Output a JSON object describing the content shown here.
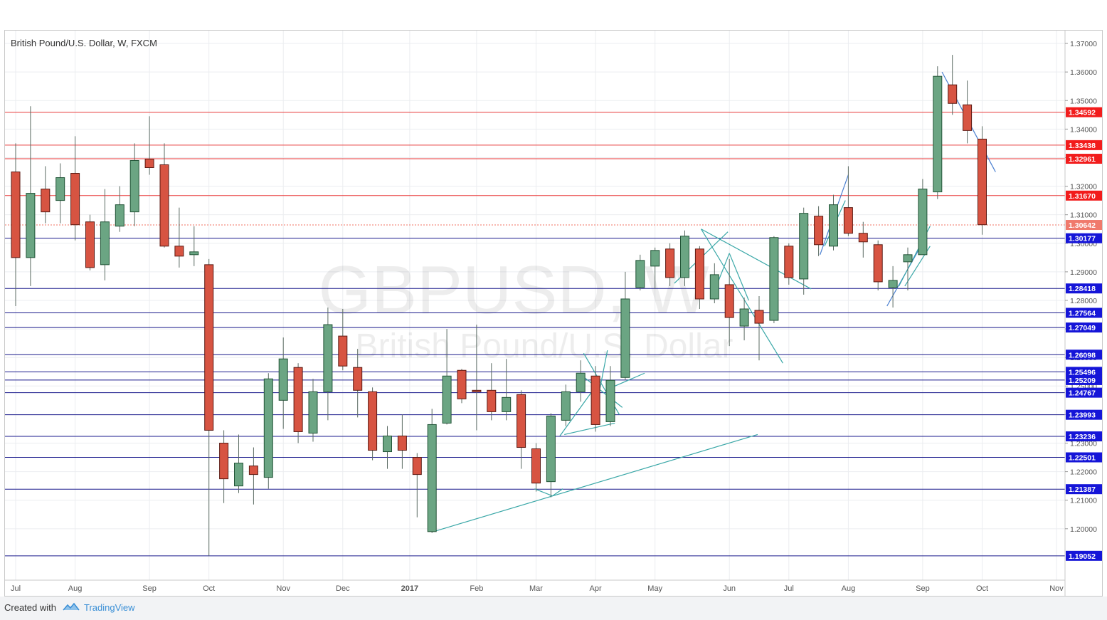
{
  "header": {
    "title": "British Pound/U.S. Dollar, W, FXCM"
  },
  "footer": {
    "created_with": "Created with",
    "brand": "TradingView",
    "brand_icon": "tradingview-logo-icon"
  },
  "colors": {
    "up": "#6ba583",
    "down": "#d75442",
    "resistance": "#e83a3a",
    "support": "#1a1a8c",
    "trend": "#39a7a7",
    "trend_alt": "#4a7fd0",
    "last_price": "#f07060"
  },
  "chart_data": {
    "type": "candlestick",
    "symbol": "GBPUSD",
    "watermark": {
      "symbol": "GBPUSD, W",
      "name": "British Pound/U.S. Dollar"
    },
    "ylim": [
      1.182,
      1.3745
    ],
    "y_ticks": [
      1.2,
      1.21,
      1.22,
      1.23,
      1.24,
      1.25,
      1.26,
      1.27,
      1.28,
      1.29,
      1.3,
      1.31,
      1.32,
      1.33,
      1.34,
      1.35,
      1.36,
      1.37
    ],
    "y_tick_labels": [
      "1.20000",
      "1.21000",
      "1.22000",
      "1.23000",
      "1.24000",
      "1.25000",
      "1.26000",
      "1.27000",
      "1.28000",
      "1.29000",
      "1.30000",
      "1.31000",
      "1.32000",
      "1.33000",
      "1.34000",
      "1.35000",
      "1.36000",
      "1.37000"
    ],
    "x_labels": [
      {
        "label": "Jul",
        "week": 0
      },
      {
        "label": "Aug",
        "week": 4
      },
      {
        "label": "Sep",
        "week": 9
      },
      {
        "label": "Oct",
        "week": 13
      },
      {
        "label": "Nov",
        "week": 18
      },
      {
        "label": "Dec",
        "week": 22
      },
      {
        "label": "2017",
        "week": 26.5
      },
      {
        "label": "Feb",
        "week": 31
      },
      {
        "label": "Mar",
        "week": 35
      },
      {
        "label": "Apr",
        "week": 39
      },
      {
        "label": "May",
        "week": 43
      },
      {
        "label": "Jun",
        "week": 48
      },
      {
        "label": "Jul",
        "week": 52
      },
      {
        "label": "Aug",
        "week": 56
      },
      {
        "label": "Sep",
        "week": 61
      },
      {
        "label": "Oct",
        "week": 65
      },
      {
        "label": "Nov",
        "week": 70
      }
    ],
    "candles": [
      {
        "o": 1.325,
        "h": 1.335,
        "l": 1.278,
        "c": 1.295
      },
      {
        "o": 1.295,
        "h": 1.348,
        "l": 1.285,
        "c": 1.3175
      },
      {
        "o": 1.319,
        "h": 1.327,
        "l": 1.307,
        "c": 1.311
      },
      {
        "o": 1.315,
        "h": 1.328,
        "l": 1.307,
        "c": 1.323
      },
      {
        "o": 1.3245,
        "h": 1.3375,
        "l": 1.301,
        "c": 1.3065
      },
      {
        "o": 1.3075,
        "h": 1.31,
        "l": 1.2905,
        "c": 1.2915
      },
      {
        "o": 1.2925,
        "h": 1.319,
        "l": 1.287,
        "c": 1.3075
      },
      {
        "o": 1.306,
        "h": 1.32,
        "l": 1.304,
        "c": 1.3135
      },
      {
        "o": 1.311,
        "h": 1.335,
        "l": 1.306,
        "c": 1.329
      },
      {
        "o": 1.3295,
        "h": 1.3445,
        "l": 1.324,
        "c": 1.3265
      },
      {
        "o": 1.3275,
        "h": 1.335,
        "l": 1.2985,
        "c": 1.299
      },
      {
        "o": 1.299,
        "h": 1.3125,
        "l": 1.2915,
        "c": 1.2955
      },
      {
        "o": 1.296,
        "h": 1.306,
        "l": 1.292,
        "c": 1.297
      },
      {
        "o": 1.2925,
        "h": 1.2945,
        "l": 1.1905,
        "c": 1.2345
      },
      {
        "o": 1.23,
        "h": 1.2345,
        "l": 1.209,
        "c": 1.2175
      },
      {
        "o": 1.215,
        "h": 1.233,
        "l": 1.2125,
        "c": 1.223
      },
      {
        "o": 1.222,
        "h": 1.2285,
        "l": 1.2085,
        "c": 1.219
      },
      {
        "o": 1.218,
        "h": 1.2545,
        "l": 1.214,
        "c": 1.2525
      },
      {
        "o": 1.245,
        "h": 1.267,
        "l": 1.235,
        "c": 1.2595
      },
      {
        "o": 1.2565,
        "h": 1.258,
        "l": 1.23,
        "c": 1.234
      },
      {
        "o": 1.2335,
        "h": 1.2525,
        "l": 1.2305,
        "c": 1.248
      },
      {
        "o": 1.248,
        "h": 1.2775,
        "l": 1.238,
        "c": 1.2715
      },
      {
        "o": 1.2675,
        "h": 1.277,
        "l": 1.2555,
        "c": 1.257
      },
      {
        "o": 1.2565,
        "h": 1.263,
        "l": 1.239,
        "c": 1.2485
      },
      {
        "o": 1.248,
        "h": 1.2495,
        "l": 1.224,
        "c": 1.2275
      },
      {
        "o": 1.227,
        "h": 1.236,
        "l": 1.221,
        "c": 1.2325
      },
      {
        "o": 1.2325,
        "h": 1.24,
        "l": 1.221,
        "c": 1.2275
      },
      {
        "o": 1.225,
        "h": 1.2265,
        "l": 1.204,
        "c": 1.219
      },
      {
        "o": 1.199,
        "h": 1.242,
        "l": 1.1985,
        "c": 1.2365
      },
      {
        "o": 1.237,
        "h": 1.27,
        "l": 1.2365,
        "c": 1.2535
      },
      {
        "o": 1.2555,
        "h": 1.256,
        "l": 1.244,
        "c": 1.2455
      },
      {
        "o": 1.2485,
        "h": 1.2715,
        "l": 1.2345,
        "c": 1.248
      },
      {
        "o": 1.2485,
        "h": 1.258,
        "l": 1.238,
        "c": 1.241
      },
      {
        "o": 1.241,
        "h": 1.2595,
        "l": 1.238,
        "c": 1.246
      },
      {
        "o": 1.247,
        "h": 1.2485,
        "l": 1.221,
        "c": 1.2285
      },
      {
        "o": 1.228,
        "h": 1.23,
        "l": 1.213,
        "c": 1.216
      },
      {
        "o": 1.2165,
        "h": 1.2405,
        "l": 1.211,
        "c": 1.2395
      },
      {
        "o": 1.238,
        "h": 1.2505,
        "l": 1.236,
        "c": 1.248
      },
      {
        "o": 1.248,
        "h": 1.259,
        "l": 1.2445,
        "c": 1.2545
      },
      {
        "o": 1.2535,
        "h": 1.257,
        "l": 1.234,
        "c": 1.2365
      },
      {
        "o": 1.2375,
        "h": 1.257,
        "l": 1.236,
        "c": 1.252
      },
      {
        "o": 1.253,
        "h": 1.29,
        "l": 1.252,
        "c": 1.2805
      },
      {
        "o": 1.2845,
        "h": 1.296,
        "l": 1.2835,
        "c": 1.294
      },
      {
        "o": 1.292,
        "h": 1.2985,
        "l": 1.284,
        "c": 1.2975
      },
      {
        "o": 1.298,
        "h": 1.3,
        "l": 1.285,
        "c": 1.288
      },
      {
        "o": 1.288,
        "h": 1.3045,
        "l": 1.285,
        "c": 1.3025
      },
      {
        "o": 1.298,
        "h": 1.299,
        "l": 1.277,
        "c": 1.2805
      },
      {
        "o": 1.2805,
        "h": 1.293,
        "l": 1.279,
        "c": 1.289
      },
      {
        "o": 1.2855,
        "h": 1.2945,
        "l": 1.264,
        "c": 1.274
      },
      {
        "o": 1.271,
        "h": 1.281,
        "l": 1.266,
        "c": 1.277
      },
      {
        "o": 1.2765,
        "h": 1.2815,
        "l": 1.259,
        "c": 1.272
      },
      {
        "o": 1.273,
        "h": 1.3025,
        "l": 1.272,
        "c": 1.302
      },
      {
        "o": 1.299,
        "h": 1.3,
        "l": 1.2855,
        "c": 1.288
      },
      {
        "o": 1.2875,
        "h": 1.3125,
        "l": 1.282,
        "c": 1.3105
      },
      {
        "o": 1.3095,
        "h": 1.313,
        "l": 1.2955,
        "c": 1.2995
      },
      {
        "o": 1.299,
        "h": 1.317,
        "l": 1.2975,
        "c": 1.3135
      },
      {
        "o": 1.3125,
        "h": 1.327,
        "l": 1.3025,
        "c": 1.3035
      },
      {
        "o": 1.3035,
        "h": 1.3075,
        "l": 1.295,
        "c": 1.3005
      },
      {
        "o": 1.2995,
        "h": 1.301,
        "l": 1.2835,
        "c": 1.2865
      },
      {
        "o": 1.2845,
        "h": 1.292,
        "l": 1.2775,
        "c": 1.287
      },
      {
        "o": 1.2935,
        "h": 1.2985,
        "l": 1.2835,
        "c": 1.296
      },
      {
        "o": 1.296,
        "h": 1.3225,
        "l": 1.296,
        "c": 1.319
      },
      {
        "o": 1.318,
        "h": 1.362,
        "l": 1.3155,
        "c": 1.3585
      },
      {
        "o": 1.3555,
        "h": 1.366,
        "l": 1.345,
        "c": 1.349
      },
      {
        "o": 1.3485,
        "h": 1.357,
        "l": 1.335,
        "c": 1.3395
      },
      {
        "o": 1.3365,
        "h": 1.341,
        "l": 1.303,
        "c": 1.3065
      }
    ],
    "resistance_lines": [
      1.34592,
      1.33438,
      1.32961,
      1.3167
    ],
    "support_lines": [
      1.30177,
      1.28418,
      1.27564,
      1.27049,
      1.26098,
      1.25496,
      1.25209,
      1.24767,
      1.23993,
      1.23236,
      1.22501,
      1.21387,
      1.19052
    ],
    "level_labels": {
      "1.34592": "1.34592",
      "1.33438": "1.33438",
      "1.32961": "1.32961",
      "1.31670": "1.31670",
      "1.30642": "1.30642",
      "1.30177": "1.30177",
      "1.28418": "1.28418",
      "1.27564": "1.27564",
      "1.27049": "1.27049",
      "1.26098": "1.26098",
      "1.25496": "1.25496",
      "1.25209": "1.25209",
      "1.24767": "1.24767",
      "1.23993": "1.23993",
      "1.23236": "1.23236",
      "1.22501": "1.22501",
      "1.21387": "1.21387",
      "1.19052": "1.19052"
    },
    "last_price": 1.30642,
    "trendlines": [
      {
        "w1": 28.1,
        "p1": 1.199,
        "w2": 49.9,
        "p2": 1.233,
        "color": "trend"
      },
      {
        "w1": 36.1,
        "p1": 1.2115,
        "w2": 34.9,
        "p2": 1.214,
        "color": "trend"
      },
      {
        "w1": 36.1,
        "p1": 1.2115,
        "w2": 36.8,
        "p2": 1.214,
        "color": "trend"
      },
      {
        "w1": 36.6,
        "p1": 1.2325,
        "w2": 39.1,
        "p2": 1.2505,
        "color": "trend"
      },
      {
        "w1": 36.9,
        "p1": 1.233,
        "w2": 40.3,
        "p2": 1.237,
        "color": "trend"
      },
      {
        "w1": 38.2,
        "p1": 1.2615,
        "w2": 40.6,
        "p2": 1.24,
        "color": "trend"
      },
      {
        "w1": 38.0,
        "p1": 1.254,
        "w2": 40.8,
        "p2": 1.2425,
        "color": "trend"
      },
      {
        "w1": 39.1,
        "p1": 1.244,
        "w2": 39.8,
        "p2": 1.2625,
        "color": "trend"
      },
      {
        "w1": 40.3,
        "p1": 1.25,
        "w2": 42.3,
        "p2": 1.2545,
        "color": "trend"
      },
      {
        "w1": 46.1,
        "p1": 1.305,
        "w2": 53.5,
        "p2": 1.284,
        "color": "trend"
      },
      {
        "w1": 46.1,
        "p1": 1.305,
        "w2": 51.6,
        "p2": 1.258,
        "color": "trend"
      },
      {
        "w1": 47.9,
        "p1": 1.304,
        "w2": 44.3,
        "p2": 1.286,
        "color": "trend"
      },
      {
        "w1": 48.0,
        "p1": 1.2965,
        "w2": 46.9,
        "p2": 1.282,
        "color": "trend"
      },
      {
        "w1": 48.0,
        "p1": 1.2965,
        "w2": 49.3,
        "p2": 1.28,
        "color": "trend"
      },
      {
        "w1": 54.1,
        "p1": 1.296,
        "w2": 56.0,
        "p2": 1.324,
        "color": "trend_alt"
      },
      {
        "w1": 54.4,
        "p1": 1.299,
        "w2": 55.8,
        "p2": 1.315,
        "color": "trend"
      },
      {
        "w1": 58.6,
        "p1": 1.278,
        "w2": 61.2,
        "p2": 1.302,
        "color": "trend_alt"
      },
      {
        "w1": 59.4,
        "p1": 1.285,
        "w2": 61.5,
        "p2": 1.306,
        "color": "trend"
      },
      {
        "w1": 59.8,
        "p1": 1.285,
        "w2": 61.5,
        "p2": 1.299,
        "color": "trend"
      },
      {
        "w1": 62.3,
        "p1": 1.36,
        "w2": 65.9,
        "p2": 1.325,
        "color": "trend_alt"
      }
    ]
  }
}
